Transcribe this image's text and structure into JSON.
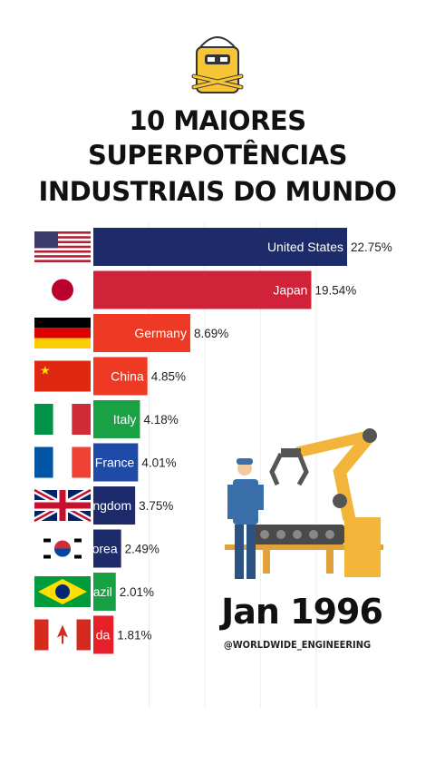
{
  "header": {
    "title_lines": [
      "10 MAIORES",
      "SUPERPOTÊNCIAS",
      "INDUSTRIAIS DO MUNDO"
    ]
  },
  "date_label": "Jan 1996",
  "credit": "@WORLDWIDE_ENGINEERING",
  "chart_data": {
    "type": "bar",
    "orientation": "horizontal",
    "title": "10 MAIORES SUPERPOTÊNCIAS INDUSTRIAIS DO MUNDO",
    "categories": [
      "United States",
      "Japan",
      "Germany",
      "China",
      "Italy",
      "France",
      "United Kingdom",
      "Korea",
      "Brazil",
      "Canada"
    ],
    "visible_labels": [
      "United States",
      "Japan",
      "Germany",
      "China",
      "Italy",
      "France",
      "ngdom",
      "orea",
      "azil",
      "da"
    ],
    "values": [
      22.75,
      19.54,
      8.69,
      4.85,
      4.18,
      4.01,
      3.75,
      2.49,
      2.01,
      1.81
    ],
    "value_labels": [
      "22.75%",
      "19.54%",
      "8.69%",
      "4.85%",
      "4.18%",
      "4.01%",
      "3.75%",
      "2.49%",
      "2.01%",
      "1.81%"
    ],
    "colors": [
      "#1d2b6b",
      "#d0233a",
      "#ee3a24",
      "#ee3a24",
      "#1aa045",
      "#1f4aa8",
      "#1d2b6b",
      "#1d2b6b",
      "#18a044",
      "#e8202a"
    ],
    "unit": "%",
    "legend": "none",
    "grid": true
  }
}
